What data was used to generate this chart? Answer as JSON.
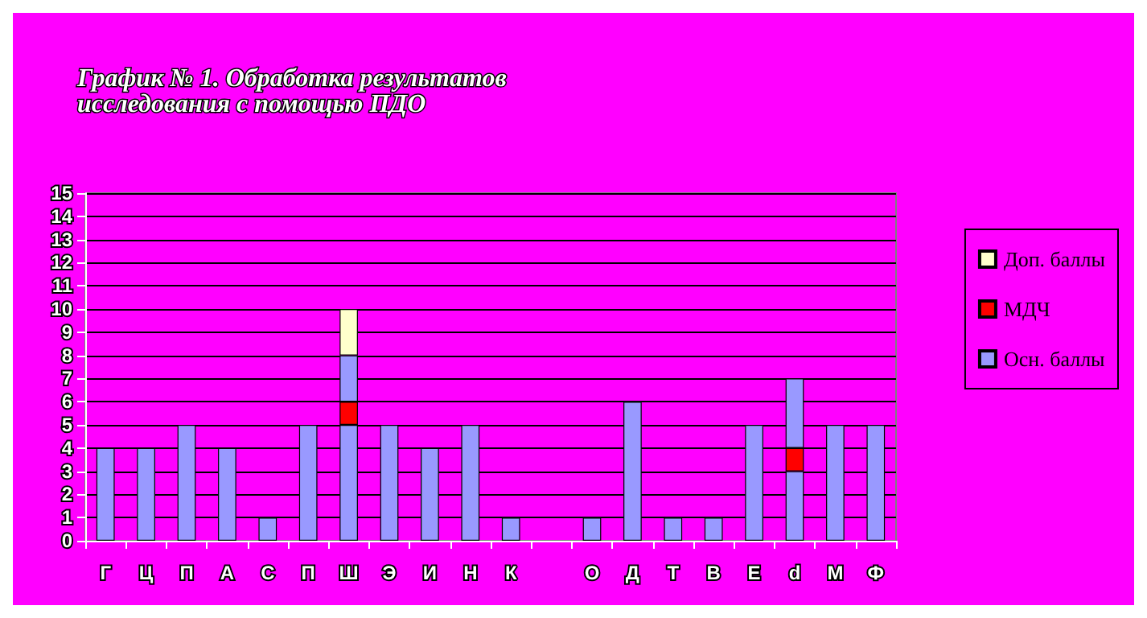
{
  "chart_data": {
    "type": "bar",
    "title": "График № 1. Обработка результатов исследования с помощью ПДО",
    "stacked": true,
    "categories": [
      "Г",
      "Ц",
      "П",
      "А",
      "С",
      "П",
      "Ш",
      "Э",
      "И",
      "Н",
      "К",
      null,
      "О",
      "Д",
      "Т",
      "В",
      "Е",
      "d",
      "М",
      "Ф"
    ],
    "series": [
      {
        "name": "Осн. баллы",
        "color": "#9999ff",
        "values": [
          4,
          4,
          5,
          4,
          1,
          5,
          5,
          5,
          4,
          5,
          1,
          null,
          1,
          6,
          1,
          1,
          5,
          3,
          5,
          5
        ]
      },
      {
        "name": "МДЧ",
        "color": "#ff0000",
        "values": [
          null,
          null,
          null,
          null,
          null,
          null,
          1,
          null,
          null,
          null,
          null,
          null,
          null,
          null,
          null,
          null,
          null,
          1,
          null,
          null
        ]
      },
      {
        "color": "#9999ff",
        "values": [
          null,
          null,
          null,
          null,
          null,
          null,
          2,
          null,
          null,
          null,
          null,
          null,
          null,
          null,
          null,
          null,
          null,
          3,
          null,
          null
        ]
      },
      {
        "name": "Доп. баллы",
        "color": "#ffffcc",
        "values": [
          null,
          null,
          null,
          null,
          null,
          null,
          2,
          null,
          null,
          null,
          null,
          null,
          null,
          null,
          null,
          null,
          null,
          null,
          null,
          null
        ]
      }
    ],
    "ylim": [
      0,
      15
    ],
    "yticks": [
      0,
      1,
      2,
      3,
      4,
      5,
      6,
      7,
      8,
      9,
      10,
      11,
      12,
      13,
      14,
      15
    ],
    "grid": "y",
    "legend": "right"
  }
}
